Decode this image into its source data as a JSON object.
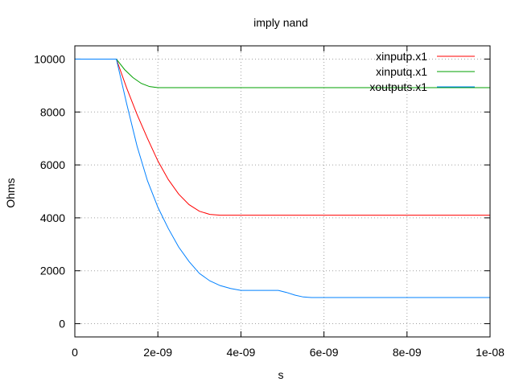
{
  "chart_data": {
    "type": "line",
    "title": "imply nand",
    "xlabel": "s",
    "ylabel": "Ohms",
    "xlim": [
      0,
      1e-08
    ],
    "ylim": [
      -500,
      10500
    ],
    "x_ticks": [
      0,
      2e-09,
      4e-09,
      6e-09,
      8e-09,
      1e-08
    ],
    "x_tick_labels": [
      "0",
      "2e-09",
      "4e-09",
      "6e-09",
      "8e-09",
      "1e-08"
    ],
    "y_ticks": [
      0,
      2000,
      4000,
      6000,
      8000,
      10000
    ],
    "y_tick_labels": [
      "0",
      "2000",
      "4000",
      "6000",
      "8000",
      "10000"
    ],
    "grid": true,
    "legend_position": "top-right",
    "series": [
      {
        "name": "xinputp.x1",
        "color": "#ff0000",
        "x": [
          0,
          1e-09,
          1.25e-09,
          1.5e-09,
          1.75e-09,
          2e-09,
          2.25e-09,
          2.5e-09,
          2.75e-09,
          3e-09,
          3.25e-09,
          3.5e-09,
          4e-09,
          5e-09,
          6e-09,
          7e-09,
          8e-09,
          9e-09,
          1e-08
        ],
        "y": [
          10000,
          10000,
          8900,
          7900,
          7000,
          6150,
          5450,
          4900,
          4500,
          4250,
          4130,
          4100,
          4100,
          4100,
          4100,
          4100,
          4100,
          4100,
          4100
        ]
      },
      {
        "name": "xinputq.x1",
        "color": "#00a000",
        "x": [
          0,
          1e-09,
          1.2e-09,
          1.4e-09,
          1.6e-09,
          1.8e-09,
          2e-09,
          3e-09,
          4e-09,
          5e-09,
          6e-09,
          7e-09,
          8e-09,
          9e-09,
          1e-08
        ],
        "y": [
          10000,
          10000,
          9600,
          9300,
          9080,
          8960,
          8920,
          8920,
          8920,
          8920,
          8920,
          8920,
          8920,
          8920,
          8920
        ]
      },
      {
        "name": "xoutputs.x1",
        "color": "#0080ff",
        "x": [
          0,
          1e-09,
          1.25e-09,
          1.5e-09,
          1.75e-09,
          2e-09,
          2.25e-09,
          2.5e-09,
          2.75e-09,
          3e-09,
          3.25e-09,
          3.5e-09,
          3.75e-09,
          4e-09,
          4.5e-09,
          4.9e-09,
          5.1e-09,
          5.3e-09,
          5.5e-09,
          5.7e-09,
          6e-09,
          7e-09,
          8e-09,
          9e-09,
          1e-08
        ],
        "y": [
          10000,
          10000,
          8300,
          6700,
          5400,
          4400,
          3600,
          2900,
          2350,
          1900,
          1620,
          1440,
          1330,
          1260,
          1260,
          1260,
          1180,
          1080,
          1010,
          990,
          990,
          990,
          990,
          990,
          990
        ]
      }
    ]
  }
}
